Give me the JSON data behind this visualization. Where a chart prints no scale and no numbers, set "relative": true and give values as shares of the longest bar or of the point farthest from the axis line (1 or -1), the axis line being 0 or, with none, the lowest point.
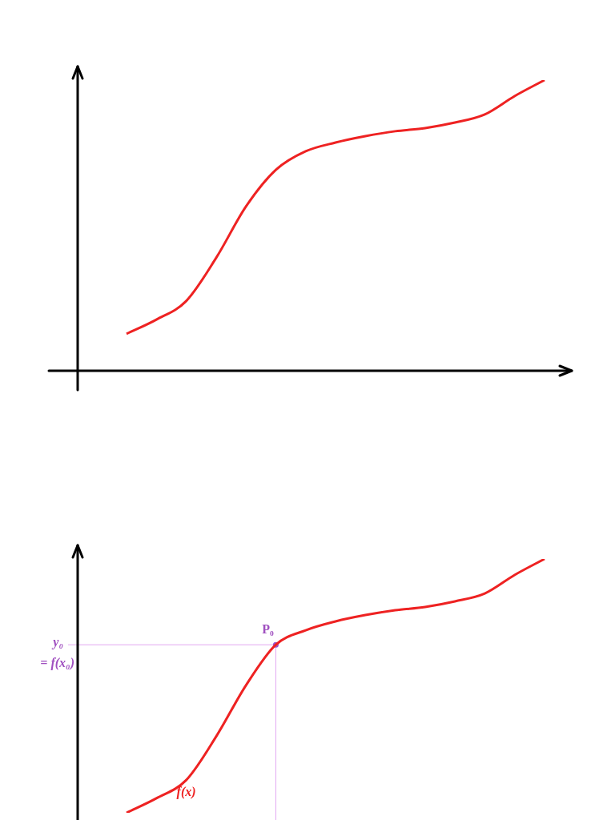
{
  "chart_data": [
    {
      "type": "line",
      "relative": true,
      "categories": [
        null,
        null,
        null,
        null,
        null,
        null,
        null,
        null,
        null,
        null,
        null,
        null,
        null,
        null,
        null
      ],
      "series": [
        {
          "color": "#ee2222",
          "values": [
            0.127,
            0.176,
            0.24,
            0.388,
            0.565,
            0.691,
            0.755,
            0.785,
            0.807,
            0.824,
            0.835,
            0.854,
            0.882,
            0.945,
            1
          ]
        }
      ],
      "legend": false,
      "grid": false,
      "marker": "none"
    },
    {
      "type": "line",
      "relative": true,
      "categories": [
        null,
        null,
        null,
        null,
        null,
        null,
        null,
        null,
        null,
        null,
        null,
        null,
        null,
        null,
        null
      ],
      "series": [
        {
          "name": "f(x)",
          "color": "#ee2222",
          "values": [
            0,
            0.057,
            0.129,
            0.3,
            0.502,
            0.662,
            0.719,
            0.754,
            0.779,
            0.798,
            0.811,
            0.833,
            0.864,
            0.937,
            1
          ]
        }
      ],
      "ref_lines": [
        {
          "axis": "y",
          "value": 0.662,
          "label": "y₀ = f(x₀)",
          "color": "#e2a8f2"
        }
      ],
      "annotations": [
        "P₀"
      ],
      "legend": false,
      "grid": false,
      "marker": "none"
    }
  ]
}
